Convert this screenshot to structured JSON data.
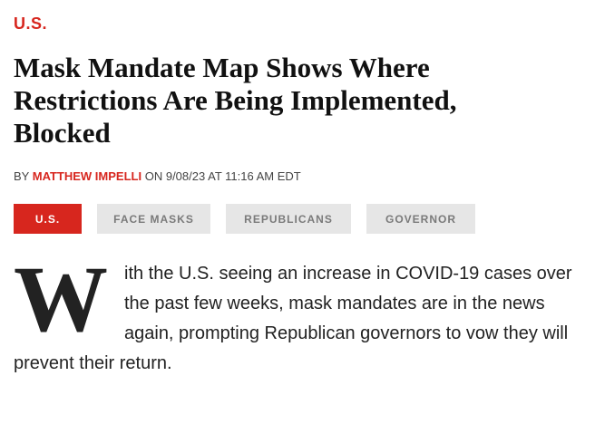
{
  "section": {
    "label": "U.S."
  },
  "article": {
    "headline": "Mask Mandate Map Shows Where Restrictions Are Being Implemented, Blocked",
    "byline": {
      "prefix": "BY",
      "author": "MATTHEW IMPELLI",
      "date_prefix": "ON",
      "date": "9/08/23 AT 11:16 AM EDT"
    },
    "tags": [
      {
        "label": "U.S.",
        "active": true
      },
      {
        "label": "FACE MASKS",
        "active": false
      },
      {
        "label": "REPUBLICANS",
        "active": false
      },
      {
        "label": "GOVERNOR",
        "active": false
      }
    ],
    "dropcap": "W",
    "body": "ith the U.S. seeing an increase in COVID-19 cases over the past few weeks, mask mandates are in the news again, prompting Republican governors to vow they will prevent their return."
  },
  "colors": {
    "accent": "#d7261e",
    "tag_background": "#e6e6e6",
    "tag_text": "#7a7a7a"
  }
}
